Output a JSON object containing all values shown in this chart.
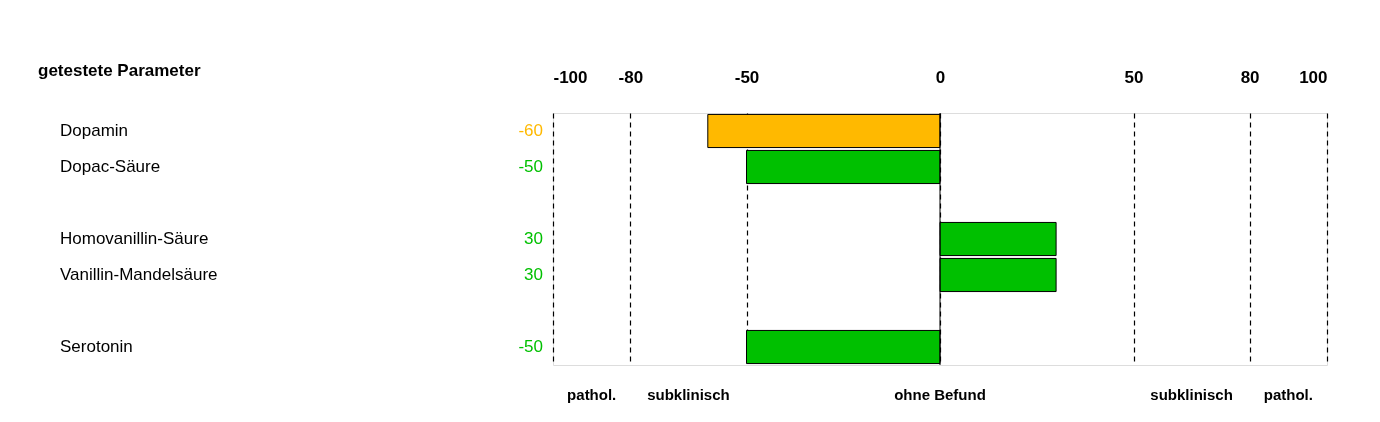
{
  "chart_data": {
    "type": "bar",
    "orientation": "horizontal",
    "title": "getestete Parameter",
    "categories": [
      "Dopamin",
      "Dopac-Säure",
      null,
      "Homovanillin-Säure",
      "Vanillin-Mandelsäure",
      null,
      "Serotonin"
    ],
    "values": [
      -60,
      -50,
      null,
      30,
      30,
      null,
      -50
    ],
    "colors": [
      "#ffb900",
      "#00c000",
      null,
      "#00c000",
      "#00c000",
      null,
      "#00c000"
    ],
    "data_labels": true,
    "x2lim": [
      -100,
      100
    ],
    "x2ticks": [
      -100,
      -80,
      -50,
      0,
      50,
      80,
      100
    ],
    "grid": "x",
    "ref_lines": [
      {
        "axis": "x",
        "value": 0,
        "color": "#000000",
        "line_style": "solid"
      }
    ],
    "annotations": [
      "pathol.",
      "subklinisch",
      "ohne Befund",
      "subklinisch",
      "pathol."
    ]
  }
}
